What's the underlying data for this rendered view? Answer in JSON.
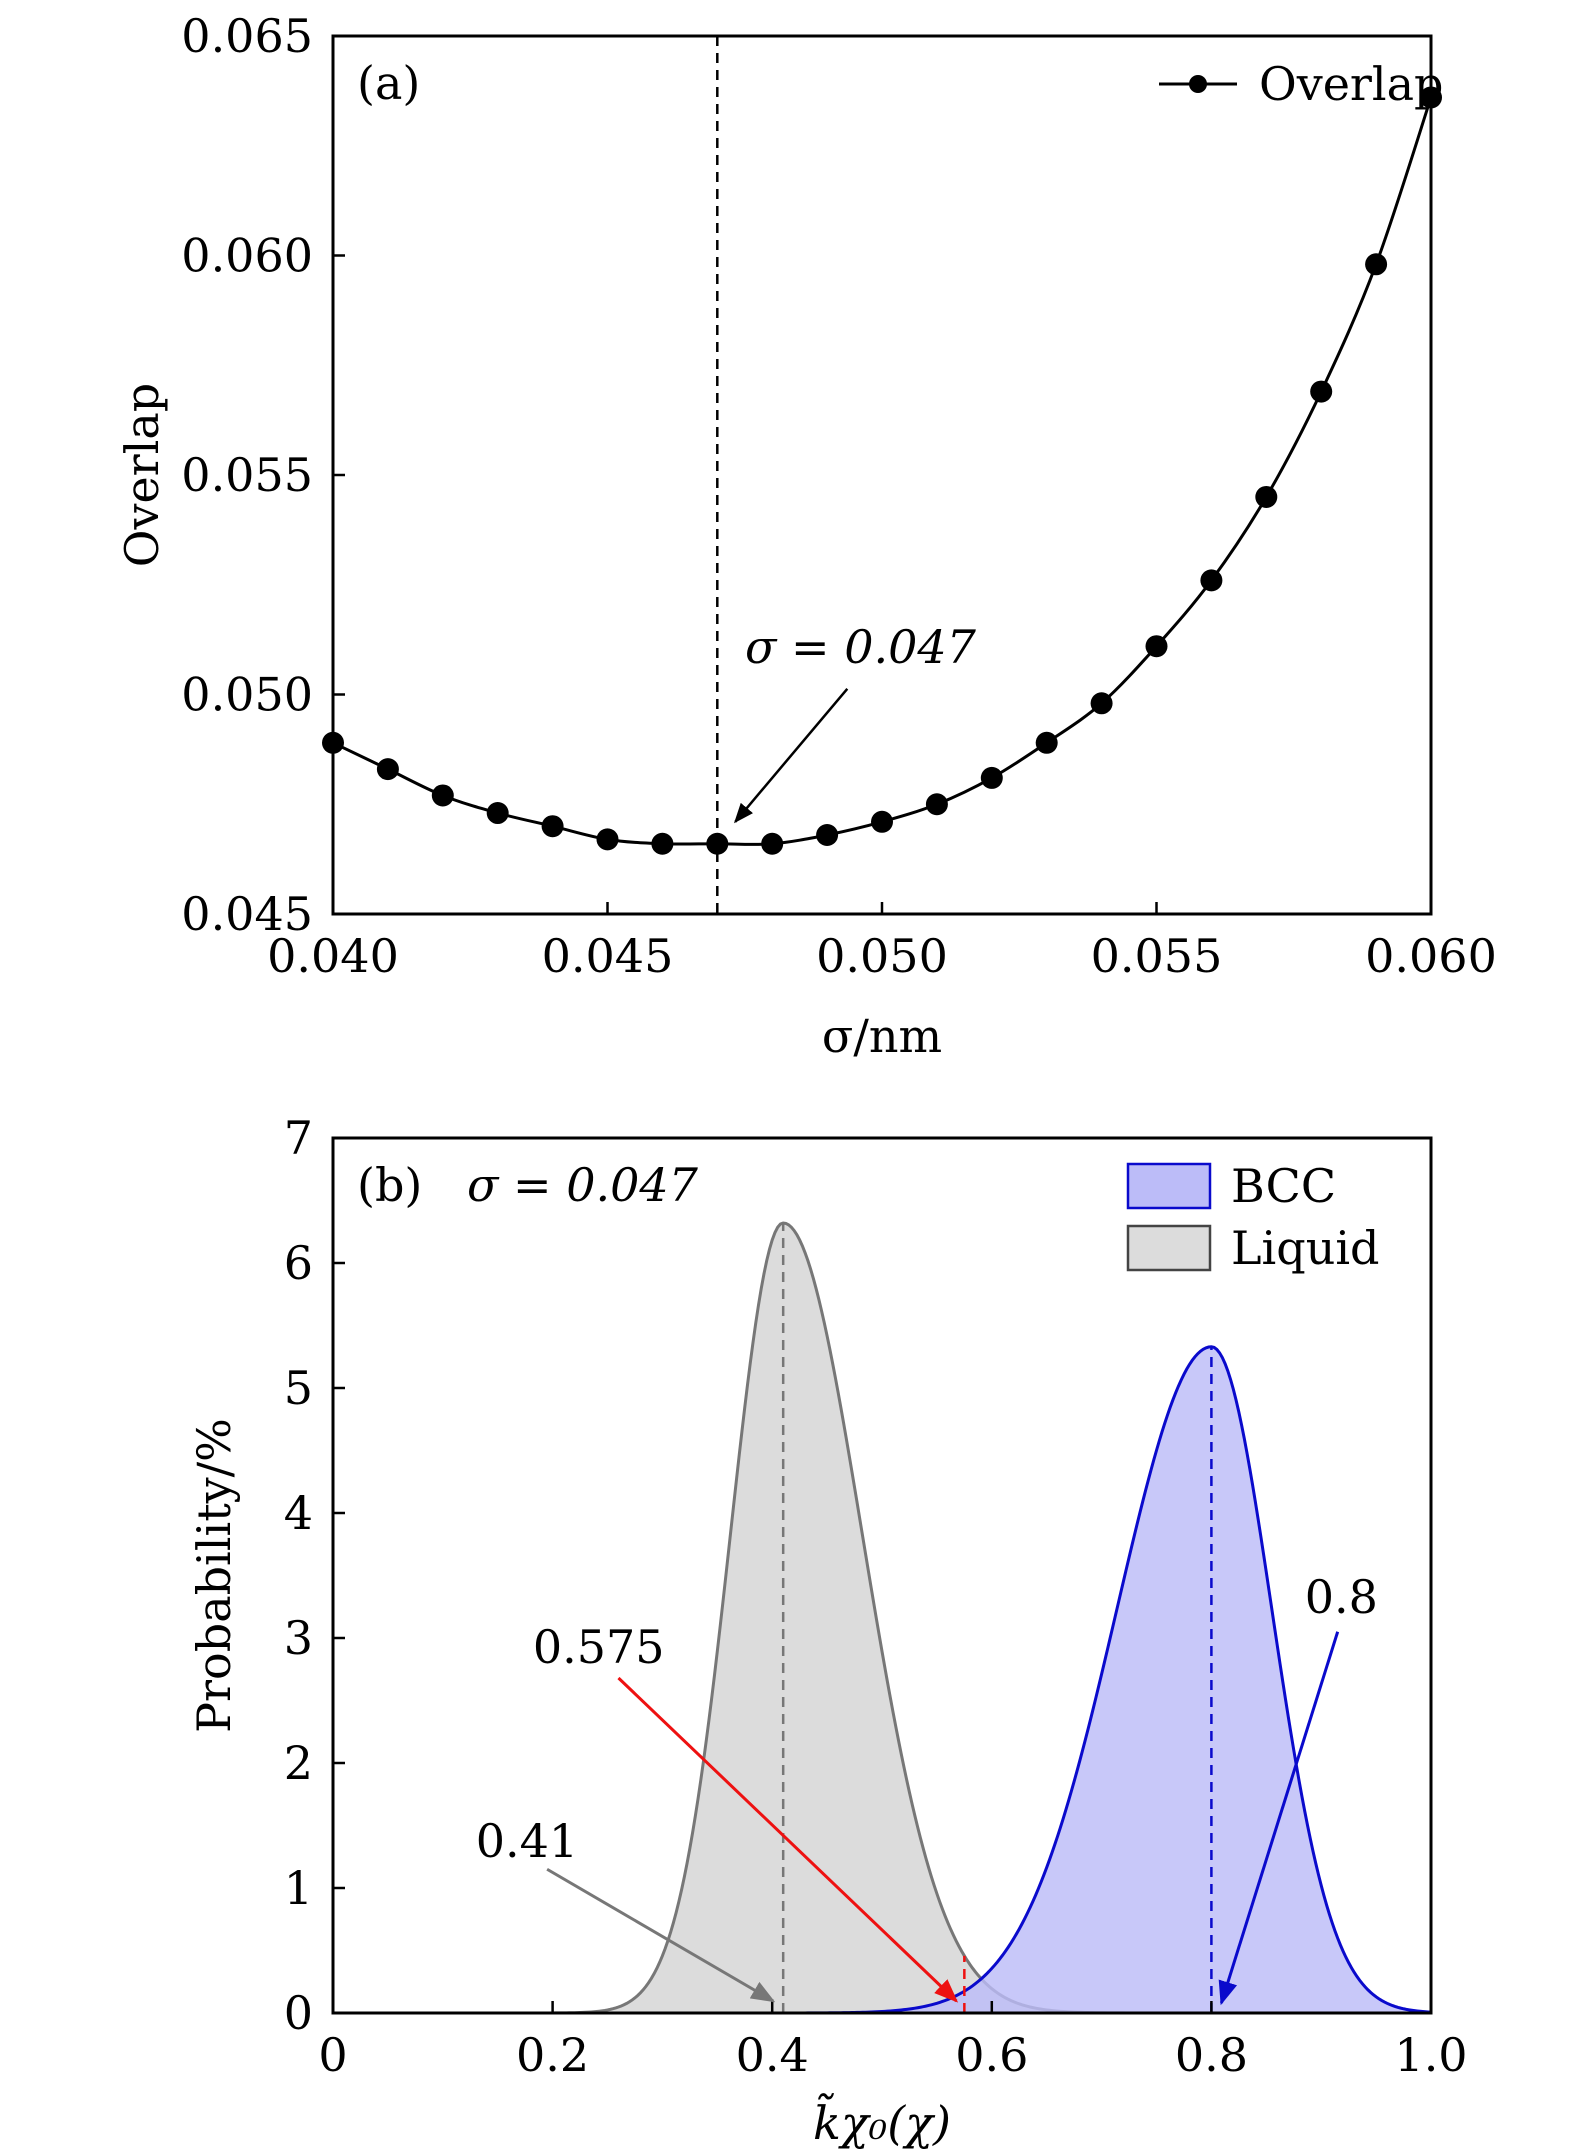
{
  "chart_data": [
    {
      "type": "line",
      "panel_label": "(a)",
      "xlabel": "σ/nm",
      "ylabel": "Overlap",
      "xlim": [
        0.04,
        0.06
      ],
      "ylim": [
        0.045,
        0.065
      ],
      "xticks": [
        "0.040",
        "0.045",
        "0.050",
        "0.055",
        "0.060"
      ],
      "yticks": [
        "0.045",
        "0.050",
        "0.055",
        "0.060",
        "0.065"
      ],
      "grid": false,
      "legend": {
        "placement": "top-right",
        "entries": [
          "Overlap"
        ]
      },
      "series": [
        {
          "name": "Overlap",
          "color": "#000000",
          "marker": "filled-circle",
          "x": [
            0.04,
            0.041,
            0.042,
            0.043,
            0.044,
            0.045,
            0.046,
            0.047,
            0.048,
            0.049,
            0.05,
            0.051,
            0.052,
            0.053,
            0.054,
            0.055,
            0.056,
            0.057,
            0.058,
            0.059,
            0.06
          ],
          "y": [
            0.0489,
            0.0483,
            0.0477,
            0.0473,
            0.047,
            0.0467,
            0.0466,
            0.0466,
            0.0466,
            0.0468,
            0.0471,
            0.0475,
            0.0481,
            0.0489,
            0.0498,
            0.0511,
            0.0526,
            0.0545,
            0.0569,
            0.0598,
            0.0636
          ]
        }
      ],
      "reference_line": {
        "x": 0.047,
        "style": "dashed"
      },
      "annotations": [
        {
          "text": "σ = 0.047",
          "points_to": [
            0.047,
            0.0466
          ]
        }
      ]
    },
    {
      "type": "area",
      "panel_label": "(b)",
      "subtitle": "σ = 0.047",
      "xlabel": "k̃χ₀(χ)",
      "ylabel": "Probability/%",
      "xlim": [
        0,
        1.0
      ],
      "ylim": [
        0,
        7
      ],
      "xticks": [
        "0",
        "0.2",
        "0.4",
        "0.6",
        "0.8",
        "1.0"
      ],
      "yticks": [
        "0",
        "1",
        "2",
        "3",
        "4",
        "5",
        "6",
        "7"
      ],
      "grid": false,
      "legend": {
        "placement": "top-right",
        "entries": [
          "BCC",
          "Liquid"
        ]
      },
      "series": [
        {
          "name": "BCC",
          "color": "#0a0acc",
          "fill": "#bcbcf8",
          "peak_x": 0.8,
          "peak_y": 5.33,
          "sigma_left": 0.086,
          "sigma_right": 0.055
        },
        {
          "name": "Liquid",
          "color": "#777777",
          "fill": "#dcdcdc",
          "peak_x": 0.41,
          "peak_y": 6.32,
          "sigma_left": 0.048,
          "sigma_right": 0.072
        }
      ],
      "annotations": [
        {
          "text": "0.41",
          "x": 0.41,
          "color": "#777777"
        },
        {
          "text": "0.575",
          "x": 0.575,
          "color": "#ee1111"
        },
        {
          "text": "0.8",
          "x": 0.8,
          "color": "#0a0acc"
        }
      ]
    }
  ]
}
